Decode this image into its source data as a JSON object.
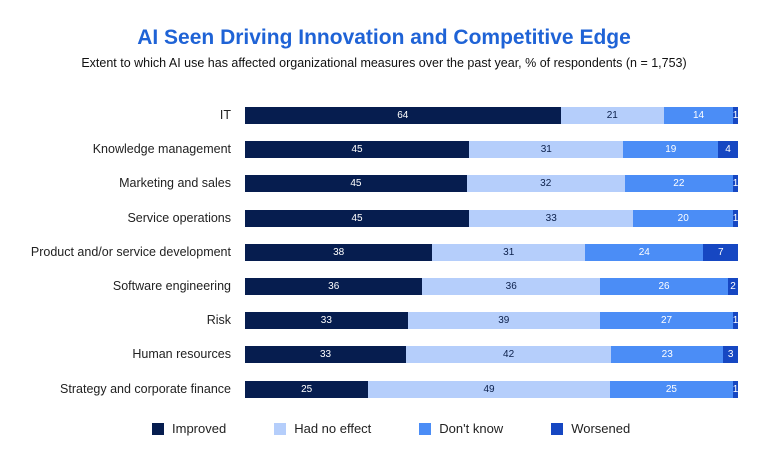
{
  "chart_data": {
    "type": "bar",
    "orientation": "horizontal",
    "stacked": true,
    "title": "AI Seen Driving Innovation and Competitive Edge",
    "subtitle": "Extent to which AI use has affected organizational measures over the past year, % of respondents (n = 1,753)",
    "categories": [
      "IT",
      "Knowledge management",
      "Marketing and sales",
      "Service operations",
      "Product and/or service development",
      "Software engineering",
      "Risk",
      "Human resources",
      "Strategy and corporate finance"
    ],
    "series": [
      {
        "name": "Improved",
        "color": "#061d4f",
        "label_color": "#ffffff",
        "values": [
          64,
          45,
          45,
          45,
          38,
          36,
          33,
          33,
          25
        ]
      },
      {
        "name": "Had no effect",
        "color": "#b5cefb",
        "label_color": "#0b1f4a",
        "values": [
          21,
          31,
          32,
          33,
          31,
          36,
          39,
          42,
          49
        ]
      },
      {
        "name": "Don't know",
        "color": "#4b8df6",
        "label_color": "#ffffff",
        "values": [
          14,
          19,
          22,
          20,
          24,
          26,
          27,
          23,
          25
        ]
      },
      {
        "name": "Worsened",
        "color": "#1647c2",
        "label_color": "#ffffff",
        "values": [
          1,
          4,
          1,
          1,
          7,
          2,
          1,
          3,
          1
        ]
      }
    ],
    "data_labels": true,
    "grid": false,
    "legend_position": "bottom"
  }
}
